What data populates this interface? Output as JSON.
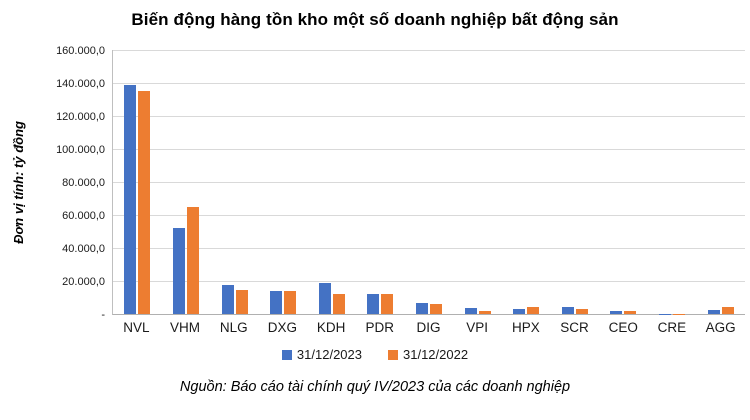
{
  "title": "Biến động hàng tồn kho một số doanh nghiệp bất động sản",
  "source": "Nguồn: Báo cáo tài chính quý IV/2023 của các doanh nghiệp",
  "y_axis": {
    "label": "Đơn vị tính: tỷ đồng",
    "ticks": [
      "160.000,0",
      "140.000,0",
      "120.000,0",
      "100.000,0",
      "80.000,0",
      "60.000,0",
      "40.000,0",
      "20.000,0",
      "-"
    ]
  },
  "legend": {
    "items": [
      {
        "label": "31/12/2023",
        "color": "#4472C4"
      },
      {
        "label": "31/12/2022",
        "color": "#ED7D31"
      }
    ]
  },
  "colors": {
    "series_2023": "#4472C4",
    "series_2022": "#ED7D31",
    "gridline": "#D9D9D9",
    "axis_line": "#BFBFBF"
  },
  "chart_data": {
    "type": "bar",
    "title": "Biến động hàng tồn kho một số doanh nghiệp bất động sản",
    "ylabel": "Đơn vị tính: tỷ đồng",
    "xlabel": "",
    "units": "tỷ đồng",
    "ylim": [
      0,
      160000
    ],
    "ytick_step": 20000,
    "grid": true,
    "legend_position": "bottom",
    "categories": [
      "NVL",
      "VHM",
      "NLG",
      "DXG",
      "KDH",
      "PDR",
      "DIG",
      "VPI",
      "HPX",
      "SCR",
      "CEO",
      "CRE",
      "AGG"
    ],
    "series": [
      {
        "name": "31/12/2023",
        "color": "#4472C4",
        "values": [
          139000,
          52000,
          17400,
          14100,
          18800,
          12200,
          6600,
          3600,
          3100,
          4400,
          1700,
          100,
          2700
        ]
      },
      {
        "name": "31/12/2022",
        "color": "#ED7D31",
        "values": [
          135000,
          64800,
          14800,
          14200,
          12400,
          12300,
          5900,
          2100,
          4300,
          3200,
          1800,
          150,
          4300
        ]
      }
    ]
  }
}
